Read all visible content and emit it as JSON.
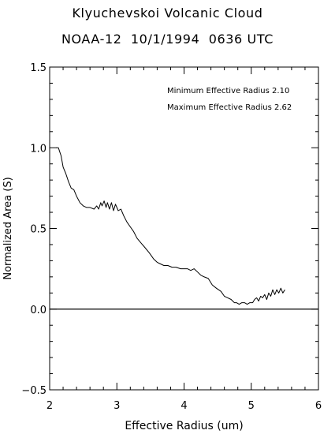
{
  "chart_data": {
    "type": "line",
    "title": "Klyuchevskoi Volcanic Cloud",
    "subtitle": "NOAA-12  10/1/1994  0636 UTC",
    "xlabel": "Effective Radius (um)",
    "ylabel": "Normalized Area (S)",
    "xlim": [
      2,
      6
    ],
    "ylim": [
      -0.5,
      1.5
    ],
    "x_ticks": [
      2,
      3,
      4,
      5,
      6
    ],
    "x_tick_labels": [
      "2",
      "3",
      "4",
      "5",
      "6"
    ],
    "y_ticks": [
      -0.5,
      0.0,
      0.5,
      1.0,
      1.5
    ],
    "y_tick_labels": [
      "-0.5",
      "0.0",
      "0.5",
      "1.0",
      "1.5"
    ],
    "annotations": [
      "Minimum Effective Radius  2.10",
      "Maximum Effective Radius  2.62"
    ],
    "reference_line_y": 0.0,
    "grid": false,
    "series": [
      {
        "x": [
          2.1,
          2.13,
          2.17,
          2.2,
          2.24,
          2.28,
          2.32,
          2.36,
          2.4,
          2.45,
          2.5,
          2.55,
          2.6,
          2.66,
          2.7,
          2.73,
          2.76,
          2.78,
          2.81,
          2.84,
          2.86,
          2.89,
          2.92,
          2.95,
          2.98,
          3.02,
          3.06,
          3.1,
          3.15,
          3.2,
          3.25,
          3.3,
          3.36,
          3.42,
          3.48,
          3.55,
          3.6,
          3.65,
          3.7,
          3.76,
          3.82,
          3.88,
          3.95,
          4.0,
          4.05,
          4.1,
          4.15,
          4.2,
          4.25,
          4.3,
          4.36,
          4.42,
          4.48,
          4.55,
          4.6,
          4.65,
          4.7,
          4.75,
          4.78,
          4.82,
          4.86,
          4.9,
          4.94,
          4.98,
          5.02,
          5.05,
          5.08,
          5.11,
          5.14,
          5.17,
          5.2,
          5.23,
          5.26,
          5.29,
          5.32,
          5.35,
          5.38,
          5.41,
          5.44,
          5.47,
          5.5
        ],
        "y": [
          1.0,
          1.0,
          0.95,
          0.88,
          0.84,
          0.79,
          0.75,
          0.74,
          0.7,
          0.66,
          0.64,
          0.63,
          0.63,
          0.62,
          0.64,
          0.62,
          0.66,
          0.64,
          0.67,
          0.63,
          0.66,
          0.62,
          0.66,
          0.61,
          0.65,
          0.61,
          0.62,
          0.58,
          0.54,
          0.51,
          0.48,
          0.44,
          0.41,
          0.38,
          0.35,
          0.31,
          0.29,
          0.28,
          0.27,
          0.27,
          0.26,
          0.26,
          0.25,
          0.25,
          0.25,
          0.24,
          0.25,
          0.23,
          0.21,
          0.2,
          0.19,
          0.15,
          0.13,
          0.11,
          0.08,
          0.07,
          0.06,
          0.04,
          0.04,
          0.03,
          0.04,
          0.04,
          0.03,
          0.04,
          0.04,
          0.06,
          0.07,
          0.05,
          0.08,
          0.07,
          0.09,
          0.06,
          0.1,
          0.08,
          0.12,
          0.09,
          0.12,
          0.1,
          0.13,
          0.1,
          0.12
        ]
      }
    ]
  }
}
